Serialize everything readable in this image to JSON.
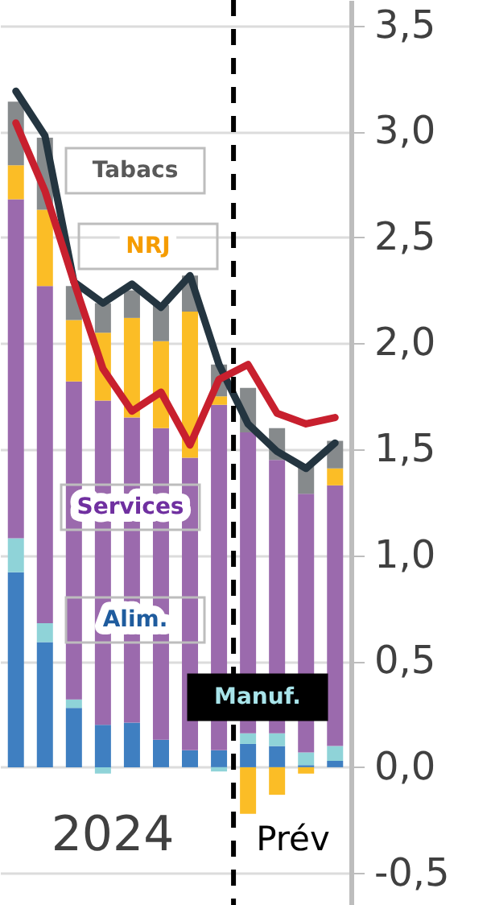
{
  "chart_data": {
    "type": "bar",
    "stacked": true,
    "categories": [
      null,
      null,
      null,
      null,
      null,
      null,
      null,
      null,
      null,
      null,
      null,
      null
    ],
    "series": [
      {
        "name": "Alim.",
        "color": "#3f7fc1",
        "values": [
          0.92,
          0.59,
          0.28,
          0.2,
          0.21,
          0.13,
          0.08,
          0.08,
          0.11,
          0.1,
          0.01,
          0.03
        ]
      },
      {
        "name": "Manuf.",
        "color": "#8fd3d8",
        "values": [
          0.16,
          0.09,
          0.04,
          -0.03,
          0.0,
          0.0,
          0.0,
          -0.02,
          0.05,
          0.06,
          0.06,
          0.07
        ]
      },
      {
        "name": "Services",
        "color": "#9b6aad",
        "values": [
          1.6,
          1.59,
          1.5,
          1.53,
          1.44,
          1.47,
          1.38,
          1.63,
          1.42,
          1.29,
          1.22,
          1.23
        ]
      },
      {
        "name": "NRJ",
        "color": "#fbbd26",
        "values": [
          0.16,
          0.36,
          0.29,
          0.32,
          0.47,
          0.41,
          0.69,
          0.04,
          -0.22,
          -0.13,
          -0.03,
          0.08
        ]
      },
      {
        "name": "Tabacs",
        "color": "#868a8c",
        "values": [
          0.3,
          0.34,
          0.16,
          0.14,
          0.13,
          0.17,
          0.17,
          0.15,
          0.21,
          0.15,
          0.13,
          0.13
        ]
      },
      {
        "type": "line",
        "color": "#243540",
        "values": [
          3.19,
          2.98,
          2.29,
          2.19,
          2.28,
          2.17,
          2.32,
          1.9,
          1.62,
          1.49,
          1.41,
          1.53
        ]
      },
      {
        "type": "line",
        "color": "#c8202e",
        "values": [
          3.04,
          2.72,
          2.29,
          1.88,
          1.68,
          1.77,
          1.52,
          1.83,
          1.9,
          1.67,
          1.62,
          1.65
        ]
      }
    ],
    "ylim": [
      -0.65,
      3.62
    ],
    "yticks": [
      {
        "value": -0.5,
        "label": "-0,5"
      },
      {
        "value": 0,
        "label": "0,0"
      },
      {
        "value": 0.5,
        "label": "0,5"
      },
      {
        "value": 1,
        "label": "1,0"
      },
      {
        "value": 1.5,
        "label": "1,5"
      },
      {
        "value": 2,
        "label": "2,0"
      },
      {
        "value": 2.5,
        "label": "2,5"
      },
      {
        "value": 3,
        "label": "3,0"
      },
      {
        "value": 3.5,
        "label": "3,5"
      }
    ],
    "grid": "y",
    "line_style": "solid",
    "annotations": [
      "2024",
      "Prév"
    ]
  }
}
